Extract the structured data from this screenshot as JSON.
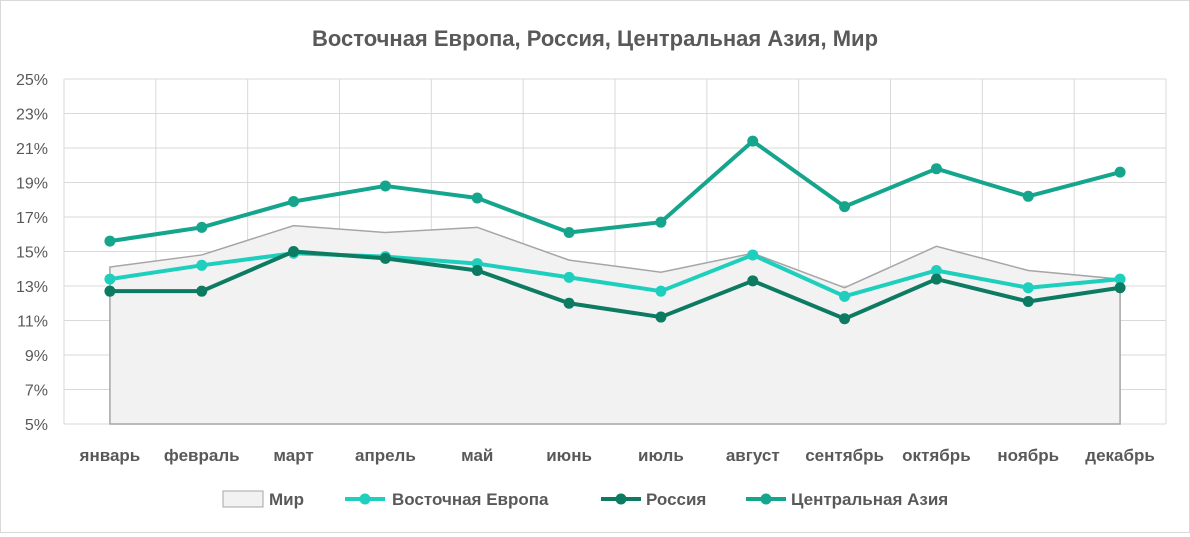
{
  "chart_data": {
    "type": "line",
    "title": "Восточная Европа, Россия, Центральная Азия, Мир",
    "xlabel": "",
    "ylabel": "",
    "categories": [
      "январь",
      "февраль",
      "март",
      "апрель",
      "май",
      "июнь",
      "июль",
      "август",
      "сентябрь",
      "октябрь",
      "ноябрь",
      "декабрь"
    ],
    "ylim": [
      5,
      25
    ],
    "yticks": [
      5,
      7,
      9,
      11,
      13,
      15,
      17,
      19,
      21,
      23,
      25
    ],
    "ytick_labels": [
      "5%",
      "7%",
      "9%",
      "11%",
      "13%",
      "15%",
      "17%",
      "19%",
      "21%",
      "23%",
      "25%"
    ],
    "grid": true,
    "legend_position": "bottom",
    "series": [
      {
        "name": "Мир",
        "type": "area",
        "color": "#a6a6a6",
        "fill": "#f2f2f2",
        "values": [
          14.1,
          14.8,
          16.5,
          16.1,
          16.4,
          14.5,
          13.8,
          14.9,
          12.9,
          15.3,
          13.9,
          13.4
        ]
      },
      {
        "name": "Восточная Европа",
        "type": "line",
        "color": "#1fcfbd",
        "values": [
          13.4,
          14.2,
          14.9,
          14.7,
          14.3,
          13.5,
          12.7,
          14.8,
          12.4,
          13.9,
          12.9,
          13.4
        ]
      },
      {
        "name": "Россия",
        "type": "line",
        "color": "#0d7a62",
        "values": [
          12.7,
          12.7,
          15.0,
          14.6,
          13.9,
          12.0,
          11.2,
          13.3,
          11.1,
          13.4,
          12.1,
          12.9
        ]
      },
      {
        "name": "Центральная Азия",
        "type": "line",
        "color": "#14a58c",
        "values": [
          15.6,
          16.4,
          17.9,
          18.8,
          18.1,
          16.1,
          16.7,
          21.4,
          17.6,
          19.8,
          18.2,
          19.6
        ]
      }
    ]
  }
}
